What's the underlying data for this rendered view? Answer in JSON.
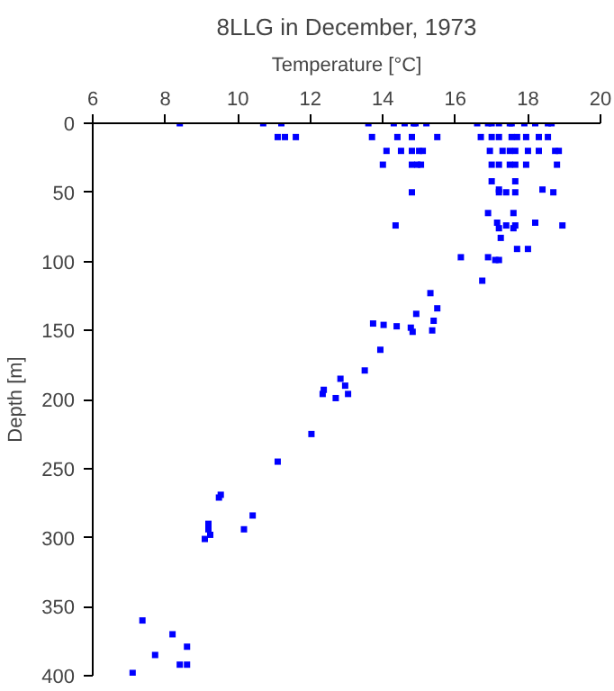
{
  "chart_data": {
    "type": "scatter",
    "title": "8LLG in December, 1973",
    "xlabel": "Temperature [°C]",
    "ylabel": "Depth [m]",
    "xlim": [
      6,
      20
    ],
    "xticks": [
      6,
      8,
      10,
      12,
      14,
      16,
      18,
      20
    ],
    "ylim": [
      400,
      0
    ],
    "yticks": [
      0,
      50,
      100,
      150,
      200,
      250,
      300,
      350,
      400
    ],
    "grid": false,
    "marker": "square",
    "series": [
      {
        "color": "#0000ff",
        "x": [
          8.4,
          10.7,
          11.2,
          13.6,
          14.3,
          14.6,
          14.85,
          14.9,
          15.2,
          16.6,
          16.9,
          17.0,
          17.2,
          17.5,
          17.55,
          17.9,
          18.2,
          18.55,
          18.65,
          11.1,
          11.3,
          11.6,
          13.7,
          14.4,
          14.8,
          15.5,
          16.7,
          17.0,
          17.2,
          17.55,
          17.7,
          17.95,
          18.3,
          18.55,
          14.1,
          14.5,
          14.8,
          15.0,
          15.1,
          16.95,
          17.3,
          17.5,
          17.65,
          18.0,
          18.3,
          18.75,
          18.85,
          14.0,
          14.8,
          14.95,
          15.05,
          17.0,
          17.2,
          17.5,
          17.65,
          17.95,
          18.8,
          17.0,
          17.65,
          17.2,
          18.4,
          14.8,
          17.2,
          17.4,
          17.65,
          18.7,
          16.9,
          17.6,
          17.15,
          18.2,
          14.35,
          17.4,
          17.65,
          18.95,
          17.2,
          17.6,
          17.25,
          18.0,
          17.7,
          16.15,
          16.9,
          17.1,
          17.2,
          16.74,
          15.31,
          15.5,
          14.92,
          15.4,
          13.73,
          14.02,
          14.38,
          14.77,
          14.82,
          15.36,
          13.93,
          13.5,
          12.83,
          12.96,
          12.37,
          12.34,
          13.04,
          12.7,
          12.03,
          11.1,
          10.41,
          10.17,
          9.53,
          9.48,
          9.19,
          9.19,
          9.24,
          9.09,
          7.37,
          8.2,
          7.72,
          8.6,
          8.4,
          8.6,
          7.1
        ],
        "values": [
          0,
          0,
          0,
          0,
          0,
          0,
          0,
          0,
          0,
          0,
          0,
          0,
          0,
          0,
          0,
          0,
          0,
          0,
          0,
          10,
          10,
          10,
          10,
          10,
          10,
          10,
          10,
          10,
          10,
          10,
          10,
          10,
          10,
          10,
          20,
          20,
          20,
          20,
          20,
          20,
          20,
          20,
          20,
          20,
          20,
          20,
          20,
          30,
          30,
          30,
          30,
          30,
          30,
          30,
          30,
          30,
          30,
          42,
          42,
          48,
          48,
          50,
          50,
          50,
          50,
          50,
          65,
          65,
          72,
          72,
          74,
          74,
          74,
          74,
          76,
          76,
          83,
          91,
          91,
          97,
          97,
          99,
          99,
          114,
          123,
          134,
          138,
          143,
          145,
          146,
          147,
          148,
          151,
          150,
          164,
          179,
          185,
          190,
          193,
          196,
          196,
          199,
          225,
          245,
          284,
          294,
          269,
          271,
          290,
          294,
          298,
          301,
          360,
          370,
          385,
          379,
          392,
          392,
          398
        ]
      }
    ]
  }
}
